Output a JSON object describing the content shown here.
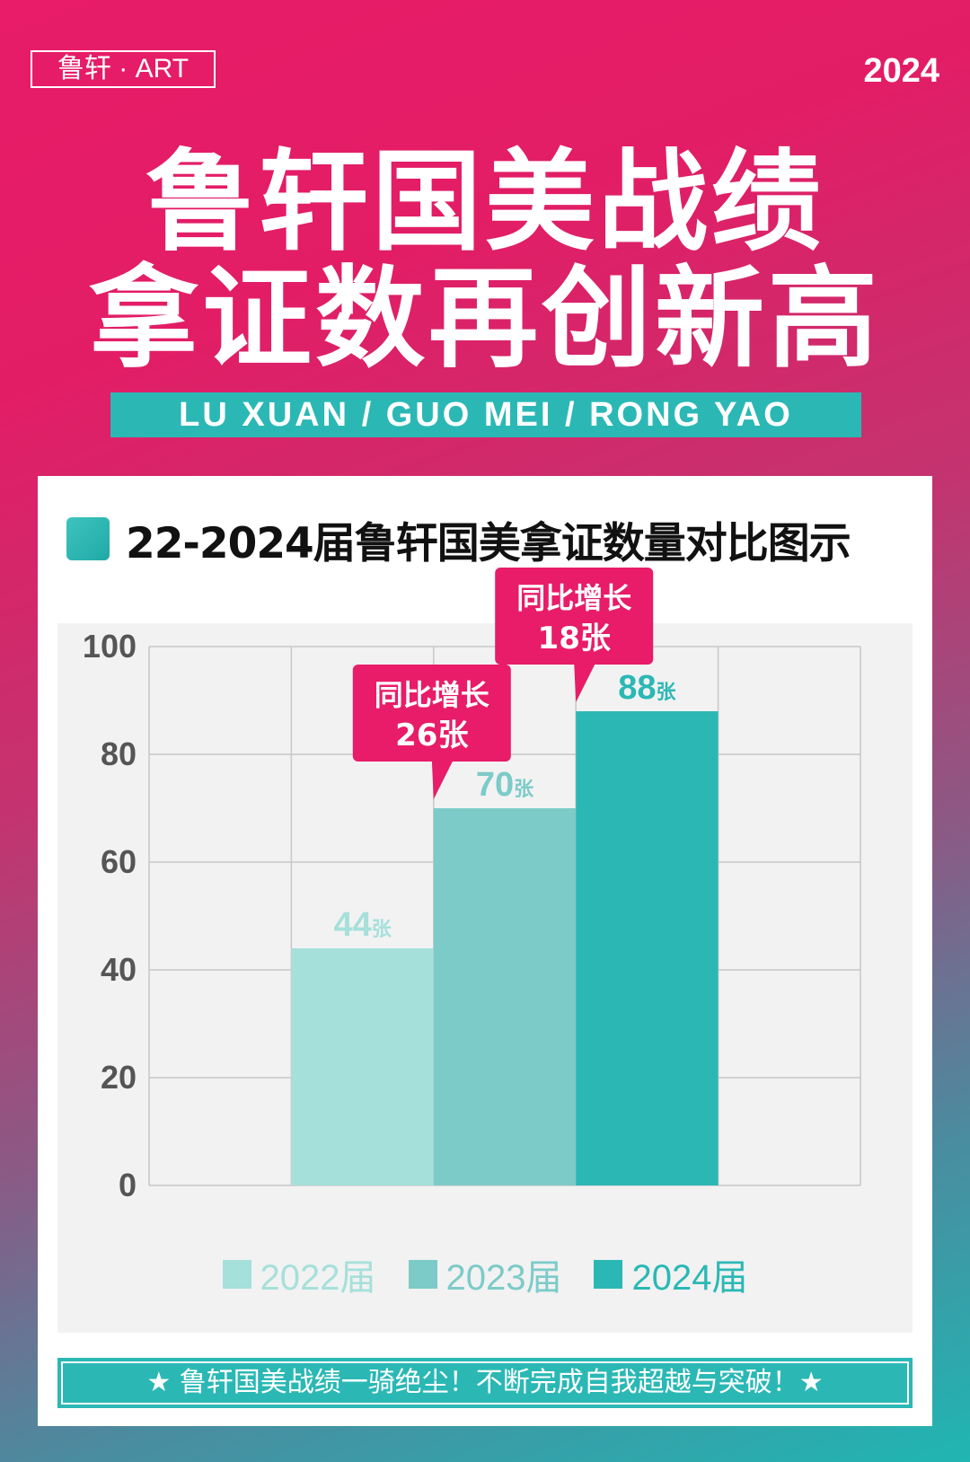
{
  "header": {
    "logo": "鲁轩 · ART",
    "year": "2024",
    "headline_line1": "鲁轩国美战绩",
    "headline_line2": "拿证数再创新高",
    "subtitle": "LU XUAN / GUO MEI / RONG YAO"
  },
  "colors": {
    "brand_pink": "#e81c68",
    "teal": "#2bb8b5",
    "series_2022": "#a6e0da",
    "series_2023": "#7ccbc8",
    "series_2024": "#2bb8b5"
  },
  "chart_title": "22-2024届鲁轩国美拿证数量对比图示",
  "chart_data": {
    "type": "bar",
    "title": "22-2024届鲁轩国美拿证数量对比图示",
    "categories": [
      "2022届",
      "2023届",
      "2024届"
    ],
    "values": [
      44,
      70,
      88
    ],
    "unit": "张",
    "ylim": [
      0,
      100
    ],
    "yticks": [
      0,
      20,
      40,
      60,
      80,
      100
    ],
    "grid": true,
    "legend_position": "bottom",
    "series_colors": [
      "#a6e0da",
      "#7ccbc8",
      "#2bb8b5"
    ],
    "annotations": [
      {
        "target": "2023届",
        "line1": "同比增长",
        "line2": "26张"
      },
      {
        "target": "2024届",
        "line1": "同比增长",
        "line2": "18张"
      }
    ]
  },
  "legend": [
    "2022届",
    "2023届",
    "2024届"
  ],
  "footer": "★ 鲁轩国美战绩一骑绝尘！不断完成自我超越与突破！★"
}
